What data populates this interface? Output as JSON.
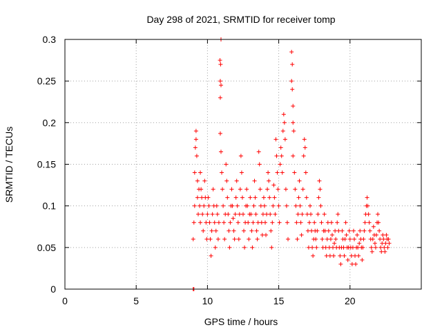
{
  "chart_data": {
    "type": "scatter",
    "title": "Day 298 of 2021, SRMTID for receiver tomp",
    "xlabel": "GPS time / hours",
    "ylabel": "SRMTID / TECUs",
    "xlim": [
      0,
      25
    ],
    "ylim": [
      0,
      0.3
    ],
    "xticks": [
      0,
      5,
      10,
      15,
      20
    ],
    "xtick_labels": [
      "0",
      "5",
      "10",
      "15",
      "20"
    ],
    "yticks": [
      0,
      0.05,
      0.1,
      0.15,
      0.2,
      0.25,
      0.3
    ],
    "ytick_labels": [
      "0",
      "0.05",
      "0.1",
      "0.15",
      "0.2",
      "0.25",
      "0.3"
    ],
    "grid": true,
    "marker": "+",
    "series_color": "#ff0000",
    "series": [
      {
        "name": "SRMTID",
        "points": [
          [
            9.0,
            0.0
          ],
          [
            9.05,
            0.0
          ],
          [
            9.0,
            0.06
          ],
          [
            9.05,
            0.08
          ],
          [
            9.1,
            0.1
          ],
          [
            9.1,
            0.14
          ],
          [
            9.15,
            0.17
          ],
          [
            9.2,
            0.18
          ],
          [
            9.2,
            0.19
          ],
          [
            9.25,
            0.16
          ],
          [
            9.3,
            0.13
          ],
          [
            9.3,
            0.11
          ],
          [
            9.35,
            0.09
          ],
          [
            9.4,
            0.12
          ],
          [
            9.45,
            0.1
          ],
          [
            9.5,
            0.08
          ],
          [
            9.5,
            0.14
          ],
          [
            9.55,
            0.12
          ],
          [
            9.6,
            0.11
          ],
          [
            9.65,
            0.09
          ],
          [
            9.7,
            0.07
          ],
          [
            9.75,
            0.1
          ],
          [
            9.8,
            0.13
          ],
          [
            9.85,
            0.11
          ],
          [
            9.9,
            0.08
          ],
          [
            9.95,
            0.06
          ],
          [
            10.0,
            0.09
          ],
          [
            10.05,
            0.11
          ],
          [
            10.1,
            0.1
          ],
          [
            10.15,
            0.08
          ],
          [
            10.2,
            0.06
          ],
          [
            10.25,
            0.04
          ],
          [
            10.3,
            0.07
          ],
          [
            10.35,
            0.09
          ],
          [
            10.4,
            0.12
          ],
          [
            10.45,
            0.1
          ],
          [
            10.5,
            0.08
          ],
          [
            10.55,
            0.05
          ],
          [
            10.6,
            0.07
          ],
          [
            10.65,
            0.1
          ],
          [
            10.7,
            0.09
          ],
          [
            10.75,
            0.06
          ],
          [
            10.8,
            0.08
          ],
          [
            10.9,
            0.23
          ],
          [
            10.9,
            0.25
          ],
          [
            10.92,
            0.27
          ],
          [
            10.95,
            0.3
          ],
          [
            10.95,
            0.245
          ],
          [
            10.88,
            0.275
          ],
          [
            10.9,
            0.187
          ],
          [
            10.95,
            0.165
          ],
          [
            11.0,
            0.14
          ],
          [
            11.05,
            0.12
          ],
          [
            11.1,
            0.1
          ],
          [
            11.15,
            0.08
          ],
          [
            11.2,
            0.06
          ],
          [
            11.25,
            0.09
          ],
          [
            11.3,
            0.15
          ],
          [
            11.35,
            0.13
          ],
          [
            11.4,
            0.11
          ],
          [
            11.45,
            0.09
          ],
          [
            11.5,
            0.07
          ],
          [
            11.55,
            0.05
          ],
          [
            11.6,
            0.08
          ],
          [
            11.65,
            0.1
          ],
          [
            11.7,
            0.12
          ],
          [
            11.75,
            0.1
          ],
          [
            11.8,
            0.085
          ],
          [
            11.85,
            0.07
          ],
          [
            11.9,
            0.06
          ],
          [
            11.95,
            0.09
          ],
          [
            12.0,
            0.11
          ],
          [
            12.05,
            0.13
          ],
          [
            12.1,
            0.1
          ],
          [
            12.15,
            0.08
          ],
          [
            12.2,
            0.06
          ],
          [
            12.25,
            0.09
          ],
          [
            12.3,
            0.12
          ],
          [
            12.35,
            0.16
          ],
          [
            12.4,
            0.14
          ],
          [
            12.45,
            0.11
          ],
          [
            12.5,
            0.09
          ],
          [
            12.55,
            0.07
          ],
          [
            12.6,
            0.05
          ],
          [
            12.65,
            0.08
          ],
          [
            12.7,
            0.1
          ],
          [
            12.75,
            0.12
          ],
          [
            12.8,
            0.1
          ],
          [
            12.85,
            0.08
          ],
          [
            12.9,
            0.06
          ],
          [
            12.95,
            0.09
          ],
          [
            13.0,
            0.11
          ],
          [
            13.05,
            0.09
          ],
          [
            13.1,
            0.07
          ],
          [
            13.15,
            0.05
          ],
          [
            13.2,
            0.08
          ],
          [
            13.25,
            0.1
          ],
          [
            13.3,
            0.13
          ],
          [
            13.35,
            0.11
          ],
          [
            13.4,
            0.09
          ],
          [
            13.45,
            0.07
          ],
          [
            13.5,
            0.06
          ],
          [
            13.55,
            0.08
          ],
          [
            13.6,
            0.165
          ],
          [
            13.65,
            0.15
          ],
          [
            13.7,
            0.12
          ],
          [
            13.75,
            0.1
          ],
          [
            13.8,
            0.08
          ],
          [
            13.85,
            0.065
          ],
          [
            13.9,
            0.09
          ],
          [
            13.95,
            0.11
          ],
          [
            14.0,
            0.1
          ],
          [
            14.05,
            0.08
          ],
          [
            14.1,
            0.065
          ],
          [
            14.15,
            0.09
          ],
          [
            14.2,
            0.12
          ],
          [
            14.25,
            0.14
          ],
          [
            14.3,
            0.13
          ],
          [
            14.35,
            0.11
          ],
          [
            14.4,
            0.09
          ],
          [
            14.45,
            0.07
          ],
          [
            14.5,
            0.05
          ],
          [
            14.55,
            0.08
          ],
          [
            14.6,
            0.1
          ],
          [
            14.65,
            0.125
          ],
          [
            14.7,
            0.11
          ],
          [
            14.75,
            0.09
          ],
          [
            14.8,
            0.18
          ],
          [
            14.85,
            0.16
          ],
          [
            14.9,
            0.14
          ],
          [
            14.95,
            0.12
          ],
          [
            15.0,
            0.1
          ],
          [
            15.05,
            0.08
          ],
          [
            15.1,
            0.15
          ],
          [
            15.15,
            0.17
          ],
          [
            15.2,
            0.16
          ],
          [
            15.25,
            0.14
          ],
          [
            15.3,
            0.19
          ],
          [
            15.35,
            0.21
          ],
          [
            15.4,
            0.2
          ],
          [
            15.45,
            0.18
          ],
          [
            15.5,
            0.12
          ],
          [
            15.55,
            0.1
          ],
          [
            15.6,
            0.08
          ],
          [
            15.65,
            0.06
          ],
          [
            15.9,
            0.285
          ],
          [
            15.95,
            0.27
          ],
          [
            15.9,
            0.25
          ],
          [
            15.95,
            0.24
          ],
          [
            16.0,
            0.22
          ],
          [
            16.0,
            0.2
          ],
          [
            16.05,
            0.19
          ],
          [
            16.0,
            0.16
          ],
          [
            16.1,
            0.14
          ],
          [
            16.15,
            0.12
          ],
          [
            16.2,
            0.1
          ],
          [
            16.25,
            0.08
          ],
          [
            16.3,
            0.06
          ],
          [
            16.35,
            0.09
          ],
          [
            16.4,
            0.11
          ],
          [
            16.45,
            0.13
          ],
          [
            16.5,
            0.1
          ],
          [
            16.55,
            0.08
          ],
          [
            16.6,
            0.065
          ],
          [
            16.65,
            0.09
          ],
          [
            16.7,
            0.12
          ],
          [
            16.75,
            0.16
          ],
          [
            16.8,
            0.18
          ],
          [
            16.85,
            0.17
          ],
          [
            16.9,
            0.14
          ],
          [
            16.95,
            0.11
          ],
          [
            17.0,
            0.09
          ],
          [
            17.05,
            0.07
          ],
          [
            17.1,
            0.05
          ],
          [
            17.15,
            0.08
          ],
          [
            17.2,
            0.1
          ],
          [
            17.25,
            0.09
          ],
          [
            17.3,
            0.07
          ],
          [
            17.35,
            0.05
          ],
          [
            17.4,
            0.04
          ],
          [
            17.45,
            0.06
          ],
          [
            17.5,
            0.08
          ],
          [
            17.55,
            0.07
          ],
          [
            17.6,
            0.06
          ],
          [
            17.65,
            0.05
          ],
          [
            17.7,
            0.07
          ],
          [
            17.75,
            0.09
          ],
          [
            17.8,
            0.11
          ],
          [
            17.85,
            0.13
          ],
          [
            17.9,
            0.12
          ],
          [
            17.95,
            0.1
          ],
          [
            18.0,
            0.08
          ],
          [
            18.05,
            0.06
          ],
          [
            18.1,
            0.05
          ],
          [
            18.15,
            0.07
          ],
          [
            18.2,
            0.09
          ],
          [
            18.25,
            0.07
          ],
          [
            18.3,
            0.05
          ],
          [
            18.35,
            0.04
          ],
          [
            18.4,
            0.06
          ],
          [
            18.45,
            0.08
          ],
          [
            18.5,
            0.07
          ],
          [
            18.55,
            0.05
          ],
          [
            18.6,
            0.04
          ],
          [
            18.65,
            0.06
          ],
          [
            18.7,
            0.08
          ],
          [
            18.75,
            0.065
          ],
          [
            18.8,
            0.05
          ],
          [
            18.85,
            0.04
          ],
          [
            18.9,
            0.055
          ],
          [
            18.95,
            0.07
          ],
          [
            19.0,
            0.06
          ],
          [
            19.05,
            0.05
          ],
          [
            19.1,
            0.08
          ],
          [
            19.15,
            0.09
          ],
          [
            19.2,
            0.07
          ],
          [
            19.25,
            0.05
          ],
          [
            19.3,
            0.04
          ],
          [
            19.35,
            0.03
          ],
          [
            19.4,
            0.05
          ],
          [
            19.45,
            0.07
          ],
          [
            19.5,
            0.06
          ],
          [
            19.55,
            0.05
          ],
          [
            19.6,
            0.04
          ],
          [
            19.65,
            0.06
          ],
          [
            19.7,
            0.08
          ],
          [
            19.75,
            0.065
          ],
          [
            19.8,
            0.05
          ],
          [
            19.85,
            0.035
          ],
          [
            19.9,
            0.05
          ],
          [
            19.95,
            0.07
          ],
          [
            20.0,
            0.06
          ],
          [
            20.05,
            0.05
          ],
          [
            20.1,
            0.04
          ],
          [
            20.15,
            0.03
          ],
          [
            20.2,
            0.05
          ],
          [
            20.25,
            0.07
          ],
          [
            20.3,
            0.06
          ],
          [
            20.35,
            0.04
          ],
          [
            20.4,
            0.03
          ],
          [
            20.45,
            0.05
          ],
          [
            20.5,
            0.065
          ],
          [
            20.55,
            0.05
          ],
          [
            20.6,
            0.04
          ],
          [
            20.65,
            0.055
          ],
          [
            20.7,
            0.07
          ],
          [
            20.75,
            0.06
          ],
          [
            20.8,
            0.05
          ],
          [
            20.85,
            0.035
          ],
          [
            20.9,
            0.05
          ],
          [
            20.95,
            0.06
          ],
          [
            21.0,
            0.07
          ],
          [
            21.05,
            0.08
          ],
          [
            21.1,
            0.09
          ],
          [
            21.15,
            0.1
          ],
          [
            21.2,
            0.11
          ],
          [
            21.25,
            0.1
          ],
          [
            21.3,
            0.09
          ],
          [
            21.35,
            0.08
          ],
          [
            21.4,
            0.07
          ],
          [
            21.45,
            0.06
          ],
          [
            21.5,
            0.05
          ],
          [
            21.55,
            0.045
          ],
          [
            21.6,
            0.06
          ],
          [
            21.65,
            0.075
          ],
          [
            21.7,
            0.065
          ],
          [
            21.75,
            0.055
          ],
          [
            21.8,
            0.05
          ],
          [
            21.85,
            0.065
          ],
          [
            21.9,
            0.08
          ],
          [
            21.95,
            0.09
          ],
          [
            22.0,
            0.08
          ],
          [
            22.05,
            0.07
          ],
          [
            22.1,
            0.06
          ],
          [
            22.15,
            0.05
          ],
          [
            22.2,
            0.045
          ],
          [
            22.25,
            0.055
          ],
          [
            22.3,
            0.065
          ],
          [
            22.35,
            0.06
          ],
          [
            22.4,
            0.05
          ],
          [
            22.45,
            0.045
          ],
          [
            22.5,
            0.055
          ],
          [
            22.55,
            0.065
          ],
          [
            22.6,
            0.06
          ],
          [
            22.65,
            0.05
          ],
          [
            22.7,
            0.06
          ],
          [
            22.75,
            0.055
          ]
        ]
      }
    ]
  }
}
